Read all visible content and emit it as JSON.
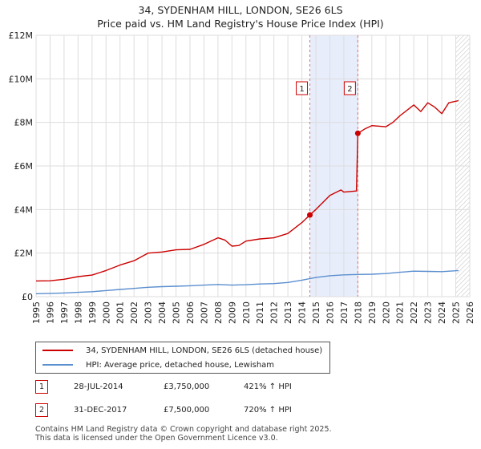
{
  "chart_data": {
    "type": "line",
    "title": "34, SYDENHAM HILL, LONDON, SE26 6LS",
    "subtitle": "Price paid vs. HM Land Registry's House Price Index (HPI)",
    "xlim": [
      1995,
      2026
    ],
    "ylim": [
      0,
      12000000
    ],
    "x_ticks": [
      1995,
      1996,
      1997,
      1998,
      1999,
      2000,
      2001,
      2002,
      2003,
      2004,
      2005,
      2006,
      2007,
      2008,
      2009,
      2010,
      2011,
      2012,
      2013,
      2014,
      2015,
      2016,
      2017,
      2018,
      2019,
      2020,
      2021,
      2022,
      2023,
      2024,
      2025,
      2026
    ],
    "y_ticks": [
      {
        "value": 0,
        "label": "£0"
      },
      {
        "value": 2000000,
        "label": "£2M"
      },
      {
        "value": 4000000,
        "label": "£4M"
      },
      {
        "value": 6000000,
        "label": "£6M"
      },
      {
        "value": 8000000,
        "label": "£8M"
      },
      {
        "value": 10000000,
        "label": "£10M"
      },
      {
        "value": 12000000,
        "label": "£12M"
      }
    ],
    "shaded_region": [
      2014.57,
      2018.0
    ],
    "forecast_hatch_from": 2025.0,
    "series": [
      {
        "name": "34, SYDENHAM HILL, LONDON, SE26 6LS (detached house)",
        "color": "#cc0000",
        "x": [
          1995,
          1996,
          1997,
          1998,
          1999,
          2000,
          2001,
          2002,
          2003,
          2004,
          2005,
          2006,
          2007,
          2008,
          2008.5,
          2009,
          2009.5,
          2010,
          2011,
          2012,
          2013,
          2014,
          2014.57,
          2015,
          2016,
          2016.8,
          2017,
          2017.9,
          2018.0,
          2018.5,
          2019,
          2020,
          2020.5,
          2021,
          2022,
          2022.5,
          2023,
          2023.5,
          2024,
          2024.5,
          2025.2
        ],
        "y": [
          720000,
          730000,
          800000,
          920000,
          990000,
          1200000,
          1450000,
          1650000,
          2000000,
          2050000,
          2150000,
          2170000,
          2400000,
          2700000,
          2600000,
          2320000,
          2350000,
          2550000,
          2650000,
          2700000,
          2900000,
          3400000,
          3750000,
          4000000,
          4650000,
          4900000,
          4800000,
          4850000,
          7500000,
          7700000,
          7850000,
          7800000,
          8000000,
          8300000,
          8800000,
          8500000,
          8900000,
          8700000,
          8400000,
          8900000,
          9000000
        ]
      },
      {
        "name": "HPI: Average price, detached house, Lewisham",
        "color": "#5b8fcf",
        "x": [
          1995,
          1996,
          1997,
          1998,
          1999,
          2000,
          2001,
          2002,
          2003,
          2004,
          2005,
          2006,
          2007,
          2008,
          2009,
          2010,
          2011,
          2012,
          2013,
          2014,
          2015,
          2016,
          2017,
          2018,
          2019,
          2020,
          2021,
          2022,
          2023,
          2024,
          2025.2
        ],
        "y": [
          138000,
          150000,
          170000,
          200000,
          230000,
          280000,
          330000,
          380000,
          430000,
          460000,
          480000,
          500000,
          530000,
          560000,
          530000,
          550000,
          580000,
          600000,
          650000,
          760000,
          880000,
          960000,
          1000000,
          1020000,
          1030000,
          1060000,
          1120000,
          1170000,
          1160000,
          1150000,
          1200000
        ]
      }
    ],
    "markers": [
      {
        "label": "1",
        "x": 2014.57,
        "y": 3750000
      },
      {
        "label": "2",
        "x": 2018.0,
        "y": 7500000
      }
    ]
  },
  "legend": {
    "property_label": "34, SYDENHAM HILL, LONDON, SE26 6LS (detached house)",
    "hpi_label": "HPI: Average price, detached house, Lewisham"
  },
  "transactions": [
    {
      "num": "1",
      "date": "28-JUL-2014",
      "price": "£3,750,000",
      "hpi": "421% ↑ HPI"
    },
    {
      "num": "2",
      "date": "31-DEC-2017",
      "price": "£7,500,000",
      "hpi": "720% ↑ HPI"
    }
  ],
  "footer": {
    "line1": "Contains HM Land Registry data © Crown copyright and database right 2025.",
    "line2": "This data is licensed under the Open Government Licence v3.0."
  }
}
